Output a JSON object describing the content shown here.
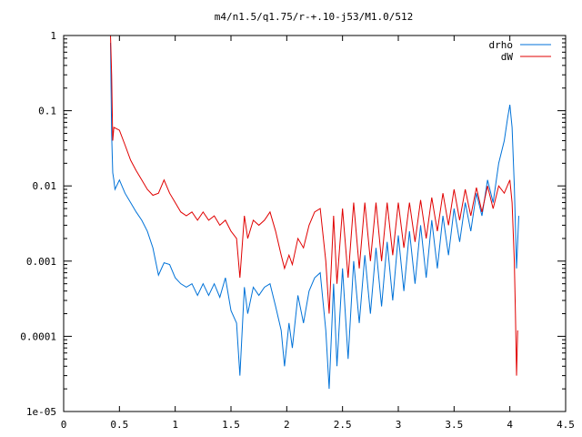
{
  "chart_data": {
    "type": "line",
    "title": "m4/n1.5/q1.75/r-+.10-j53/M1.0/512",
    "xlabel": "",
    "ylabel": "",
    "xlim": [
      0,
      4.5
    ],
    "ylim": [
      1e-05,
      1
    ],
    "yscale": "log",
    "grid": false,
    "legend_position": "top-right",
    "x_ticks": [
      "0",
      "0.5",
      "1",
      "1.5",
      "2",
      "2.5",
      "3",
      "3.5",
      "4",
      "4.5"
    ],
    "y_ticks": [
      "1",
      "0.1",
      "0.01",
      "0.001",
      "0.0001",
      "1e-05"
    ],
    "series": [
      {
        "name": "drho",
        "color": "#0072d8",
        "points": [
          [
            0.42,
            0.8
          ],
          [
            0.43,
            0.05
          ],
          [
            0.44,
            0.015
          ],
          [
            0.45,
            0.012
          ],
          [
            0.46,
            0.009
          ],
          [
            0.5,
            0.012
          ],
          [
            0.55,
            0.008
          ],
          [
            0.6,
            0.006
          ],
          [
            0.65,
            0.0045
          ],
          [
            0.7,
            0.0035
          ],
          [
            0.75,
            0.0025
          ],
          [
            0.8,
            0.0015
          ],
          [
            0.85,
            0.00065
          ],
          [
            0.9,
            0.00095
          ],
          [
            0.95,
            0.0009
          ],
          [
            1.0,
            0.0006
          ],
          [
            1.05,
            0.0005
          ],
          [
            1.1,
            0.00045
          ],
          [
            1.15,
            0.0005
          ],
          [
            1.2,
            0.00035
          ],
          [
            1.25,
            0.0005
          ],
          [
            1.3,
            0.00035
          ],
          [
            1.35,
            0.0005
          ],
          [
            1.4,
            0.00033
          ],
          [
            1.45,
            0.0006
          ],
          [
            1.5,
            0.00022
          ],
          [
            1.55,
            0.00015
          ],
          [
            1.58,
            3e-05
          ],
          [
            1.62,
            0.00045
          ],
          [
            1.65,
            0.0002
          ],
          [
            1.7,
            0.00045
          ],
          [
            1.75,
            0.00035
          ],
          [
            1.8,
            0.00045
          ],
          [
            1.85,
            0.0005
          ],
          [
            1.9,
            0.00025
          ],
          [
            1.95,
            0.00012
          ],
          [
            1.98,
            4e-05
          ],
          [
            2.02,
            0.00015
          ],
          [
            2.05,
            7e-05
          ],
          [
            2.1,
            0.00035
          ],
          [
            2.15,
            0.00015
          ],
          [
            2.2,
            0.0004
          ],
          [
            2.25,
            0.0006
          ],
          [
            2.3,
            0.0007
          ],
          [
            2.35,
            0.00012
          ],
          [
            2.38,
            2e-05
          ],
          [
            2.42,
            0.0005
          ],
          [
            2.45,
            4e-05
          ],
          [
            2.5,
            0.0008
          ],
          [
            2.55,
            5e-05
          ],
          [
            2.6,
            0.001
          ],
          [
            2.65,
            0.00015
          ],
          [
            2.7,
            0.0012
          ],
          [
            2.75,
            0.0002
          ],
          [
            2.8,
            0.0015
          ],
          [
            2.85,
            0.00025
          ],
          [
            2.9,
            0.0018
          ],
          [
            2.95,
            0.0003
          ],
          [
            3.0,
            0.0022
          ],
          [
            3.05,
            0.0004
          ],
          [
            3.1,
            0.0025
          ],
          [
            3.15,
            0.0005
          ],
          [
            3.2,
            0.003
          ],
          [
            3.25,
            0.0006
          ],
          [
            3.3,
            0.0035
          ],
          [
            3.35,
            0.0008
          ],
          [
            3.4,
            0.004
          ],
          [
            3.45,
            0.0012
          ],
          [
            3.5,
            0.005
          ],
          [
            3.55,
            0.0018
          ],
          [
            3.6,
            0.006
          ],
          [
            3.65,
            0.0025
          ],
          [
            3.7,
            0.008
          ],
          [
            3.75,
            0.004
          ],
          [
            3.8,
            0.012
          ],
          [
            3.85,
            0.006
          ],
          [
            3.9,
            0.02
          ],
          [
            3.95,
            0.04
          ],
          [
            3.98,
            0.08
          ],
          [
            4.0,
            0.12
          ],
          [
            4.02,
            0.06
          ],
          [
            4.04,
            0.01
          ],
          [
            4.06,
            0.0008
          ],
          [
            4.08,
            0.004
          ]
        ]
      },
      {
        "name": "dW",
        "color": "#e00000",
        "points": [
          [
            0.42,
            1.0
          ],
          [
            0.43,
            0.3
          ],
          [
            0.44,
            0.04
          ],
          [
            0.45,
            0.06
          ],
          [
            0.5,
            0.055
          ],
          [
            0.55,
            0.035
          ],
          [
            0.6,
            0.022
          ],
          [
            0.65,
            0.016
          ],
          [
            0.7,
            0.012
          ],
          [
            0.75,
            0.009
          ],
          [
            0.8,
            0.0075
          ],
          [
            0.85,
            0.008
          ],
          [
            0.9,
            0.012
          ],
          [
            0.95,
            0.008
          ],
          [
            1.0,
            0.006
          ],
          [
            1.05,
            0.0045
          ],
          [
            1.1,
            0.004
          ],
          [
            1.15,
            0.0045
          ],
          [
            1.2,
            0.0035
          ],
          [
            1.25,
            0.0045
          ],
          [
            1.3,
            0.0035
          ],
          [
            1.35,
            0.004
          ],
          [
            1.4,
            0.003
          ],
          [
            1.45,
            0.0035
          ],
          [
            1.5,
            0.0025
          ],
          [
            1.55,
            0.002
          ],
          [
            1.58,
            0.0006
          ],
          [
            1.62,
            0.004
          ],
          [
            1.65,
            0.002
          ],
          [
            1.7,
            0.0035
          ],
          [
            1.75,
            0.003
          ],
          [
            1.8,
            0.0035
          ],
          [
            1.85,
            0.0045
          ],
          [
            1.9,
            0.0025
          ],
          [
            1.95,
            0.0012
          ],
          [
            1.98,
            0.0008
          ],
          [
            2.02,
            0.0012
          ],
          [
            2.05,
            0.0009
          ],
          [
            2.1,
            0.002
          ],
          [
            2.15,
            0.0015
          ],
          [
            2.2,
            0.003
          ],
          [
            2.25,
            0.0045
          ],
          [
            2.3,
            0.005
          ],
          [
            2.35,
            0.001
          ],
          [
            2.38,
            0.0002
          ],
          [
            2.42,
            0.004
          ],
          [
            2.45,
            0.0005
          ],
          [
            2.5,
            0.005
          ],
          [
            2.55,
            0.0006
          ],
          [
            2.6,
            0.006
          ],
          [
            2.65,
            0.0008
          ],
          [
            2.7,
            0.006
          ],
          [
            2.75,
            0.001
          ],
          [
            2.8,
            0.006
          ],
          [
            2.85,
            0.001
          ],
          [
            2.9,
            0.006
          ],
          [
            2.95,
            0.0012
          ],
          [
            3.0,
            0.006
          ],
          [
            3.05,
            0.0015
          ],
          [
            3.1,
            0.006
          ],
          [
            3.15,
            0.0018
          ],
          [
            3.2,
            0.0065
          ],
          [
            3.25,
            0.002
          ],
          [
            3.3,
            0.007
          ],
          [
            3.35,
            0.0025
          ],
          [
            3.4,
            0.008
          ],
          [
            3.45,
            0.003
          ],
          [
            3.5,
            0.009
          ],
          [
            3.55,
            0.0035
          ],
          [
            3.6,
            0.009
          ],
          [
            3.65,
            0.004
          ],
          [
            3.7,
            0.0095
          ],
          [
            3.75,
            0.0045
          ],
          [
            3.8,
            0.01
          ],
          [
            3.85,
            0.005
          ],
          [
            3.9,
            0.01
          ],
          [
            3.95,
            0.008
          ],
          [
            4.0,
            0.012
          ],
          [
            4.02,
            0.006
          ],
          [
            4.04,
            0.001
          ],
          [
            4.05,
            0.0002
          ],
          [
            4.06,
            3e-05
          ],
          [
            4.07,
            0.00012
          ]
        ]
      }
    ]
  }
}
